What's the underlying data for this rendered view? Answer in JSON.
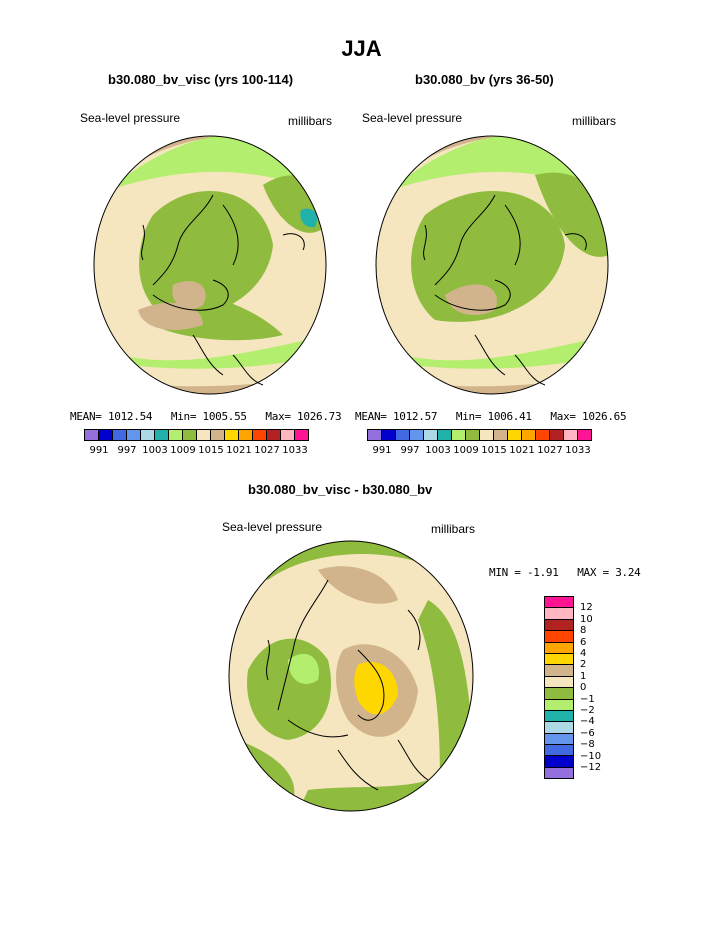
{
  "title": "JJA",
  "panels": [
    {
      "title": "b30.080_bv_visc (yrs 100-114)",
      "variable": "Sea-level pressure",
      "units": "millibars",
      "mean_label": "MEAN=",
      "mean": "1012.54",
      "min_label": "Min=",
      "min": "1005.55",
      "max_label": "Max=",
      "max": "1026.73"
    },
    {
      "title": "b30.080_bv (yrs 36-50)",
      "variable": "Sea-level pressure",
      "units": "millibars",
      "mean_label": "MEAN=",
      "mean": "1012.57",
      "min_label": "Min=",
      "min": "1006.41",
      "max_label": "Max=",
      "max": "1026.65"
    }
  ],
  "labelbar": {
    "colors": [
      "#9370DB",
      "#0000CD",
      "#4169E1",
      "#6495ED",
      "#ADD8E6",
      "#20B2AA",
      "#B3EE6E",
      "#8FBC3F",
      "#F5E6C0",
      "#D2B48C",
      "#FFD700",
      "#FFA500",
      "#FF4500",
      "#B22222",
      "#FFB6C1",
      "#FF1493"
    ],
    "labels": [
      "991",
      "997",
      "1003",
      "1009",
      "1015",
      "1021",
      "1027",
      "1033"
    ]
  },
  "diff": {
    "title": "b30.080_bv_visc - b30.080_bv",
    "variable": "Sea-level pressure",
    "units": "millibars",
    "min_label": "MIN =",
    "min": "-1.91",
    "max_label": "MAX =",
    "max": "3.24",
    "colors": [
      "#FF1493",
      "#FFB6C1",
      "#B22222",
      "#FF4500",
      "#FFA500",
      "#FFD700",
      "#D2B48C",
      "#F5E6C0",
      "#8FBC3F",
      "#B3EE6E",
      "#20B2AA",
      "#ADD8E6",
      "#6495ED",
      "#4169E1",
      "#0000CD",
      "#9370DB"
    ],
    "labels": [
      "12",
      "10",
      "8",
      "6",
      "4",
      "2",
      "1",
      "0",
      "−1",
      "−2",
      "−4",
      "−6",
      "−8",
      "−10",
      "−12"
    ]
  }
}
